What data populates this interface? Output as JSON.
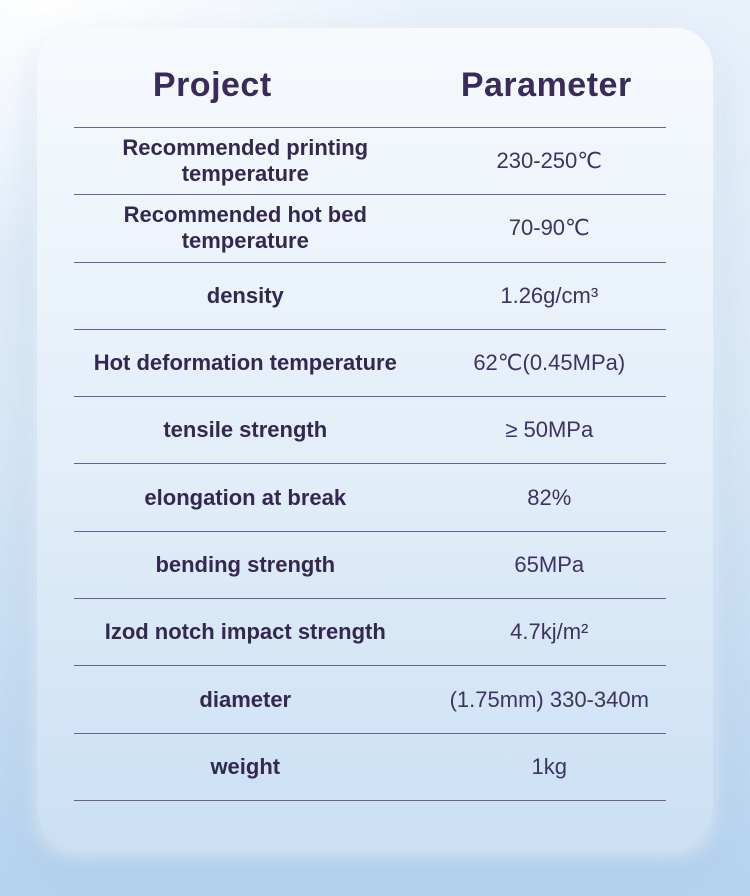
{
  "table": {
    "headers": {
      "project": "Project",
      "parameter": "Parameter"
    },
    "rows": [
      {
        "label": "Recommended printing temperature",
        "value": "230-250℃"
      },
      {
        "label": "Recommended hot bed temperature",
        "value": "70-90℃"
      },
      {
        "label": "density",
        "value": "1.26g/cm³"
      },
      {
        "label": "Hot deformation temperature",
        "value": "62℃(0.45MPa)"
      },
      {
        "label": "tensile strength",
        "value": "≥ 50MPa"
      },
      {
        "label": "elongation at break",
        "value": "82%"
      },
      {
        "label": "bending strength",
        "value": "65MPa"
      },
      {
        "label": "Izod notch impact strength",
        "value": "4.7kj/m²"
      },
      {
        "label": "diameter",
        "value": "(1.75mm) 330-340m"
      },
      {
        "label": "weight",
        "value": "1kg"
      }
    ]
  },
  "colors": {
    "header_text": "#3a2b5a",
    "label_text": "#342850",
    "value_text": "#3e3263",
    "divider": "#6a6190",
    "card_top": "#f7fafd",
    "card_bottom": "#cbe0f4",
    "page_bottom": "#b5d2ee"
  }
}
